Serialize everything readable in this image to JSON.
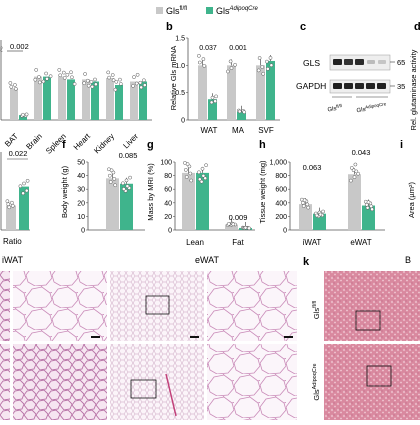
{
  "legend": {
    "items": [
      {
        "label": "Gls",
        "superscript": "fl/fl",
        "color": "#c8c8c8"
      },
      {
        "label": "Gls",
        "superscript": "AdipoqCre",
        "color": "#3fb48c"
      }
    ]
  },
  "panels": {
    "a": {
      "pvalue": "0.002",
      "tissues": [
        "BAT",
        "Brain",
        "Spleen",
        "Heart",
        "Kidney",
        "Liver"
      ]
    },
    "b": {
      "letter": "b",
      "ylabel": "Relative Gls mRNA",
      "yticks": [
        "0",
        "0.5",
        "1.0",
        "1.5"
      ],
      "pvalues": [
        "0.037",
        "0.001"
      ],
      "categories": [
        "WAT",
        "MA",
        "SVF"
      ]
    },
    "c": {
      "letter": "c",
      "rows": [
        "GLS",
        "GAPDH"
      ],
      "mw": [
        "65",
        "35"
      ],
      "lanes": [
        "Gls",
        "Gls"
      ],
      "lane_sups": [
        "fl/fl",
        "AdipoqCre"
      ]
    },
    "d": {
      "letter": "d",
      "ylabel": "Rel. glutaminase activity"
    },
    "e": {
      "ylabel": "Ratio",
      "pvalue": "0.022"
    },
    "f": {
      "letter": "f",
      "ylabel": "Body weight (g)",
      "yticks": [
        "0",
        "10",
        "20",
        "30",
        "40",
        "50"
      ],
      "pvalue": "0.085"
    },
    "g": {
      "letter": "g",
      "ylabel": "Mass by MRI (%)",
      "yticks": [
        "0",
        "20",
        "40",
        "60",
        "80",
        "100"
      ],
      "pvalue": "0.009",
      "categories": [
        "Lean",
        "Fat"
      ]
    },
    "h": {
      "letter": "h",
      "ylabel": "Tissue weight (mg)",
      "yticks": [
        "0",
        "200",
        "400",
        "600",
        "800",
        "1,000"
      ],
      "pvalues": [
        "0.063",
        "0.043"
      ],
      "categories": [
        "iWAT",
        "eWAT"
      ]
    },
    "i": {
      "letter": "i",
      "ylabel": "Area (µm²)"
    },
    "j": {
      "titles": [
        "iWAT",
        "eWAT"
      ]
    },
    "k": {
      "letter": "k",
      "row_labels": [
        "Gls",
        "Gls"
      ],
      "row_sups": [
        "fl/fl",
        "AdipoqCre"
      ],
      "title_fragment": "B"
    }
  },
  "chart_data": [
    {
      "type": "bar",
      "title": "",
      "ylabel": "Relative Gls mRNA",
      "categories": [
        "WAT",
        "MA",
        "SVF"
      ],
      "ylim": [
        0,
        1.5
      ],
      "series": [
        {
          "name": "Gls fl/fl",
          "values": [
            1.0,
            1.0,
            1.0
          ]
        },
        {
          "name": "Gls AdipoqCre",
          "values": [
            0.38,
            0.15,
            1.08
          ]
        }
      ]
    },
    {
      "type": "bar",
      "title": "",
      "ylabel": "Body weight (g)",
      "categories": [
        ""
      ],
      "ylim": [
        0,
        50
      ],
      "series": [
        {
          "name": "Gls fl/fl",
          "values": [
            38
          ]
        },
        {
          "name": "Gls AdipoqCre",
          "values": [
            34
          ]
        }
      ]
    },
    {
      "type": "bar",
      "title": "",
      "ylabel": "Mass by MRI (%)",
      "categories": [
        "Lean",
        "Fat"
      ],
      "ylim": [
        0,
        100
      ],
      "series": [
        {
          "name": "Gls fl/fl",
          "values": [
            84,
            8
          ]
        },
        {
          "name": "Gls AdipoqCre",
          "values": [
            84,
            3
          ]
        }
      ]
    },
    {
      "type": "bar",
      "title": "",
      "ylabel": "Tissue weight (mg)",
      "categories": [
        "iWAT",
        "eWAT"
      ],
      "ylim": [
        0,
        1000
      ],
      "series": [
        {
          "name": "Gls fl/fl",
          "values": [
            380,
            820
          ]
        },
        {
          "name": "Gls AdipoqCre",
          "values": [
            240,
            360
          ]
        }
      ]
    }
  ]
}
